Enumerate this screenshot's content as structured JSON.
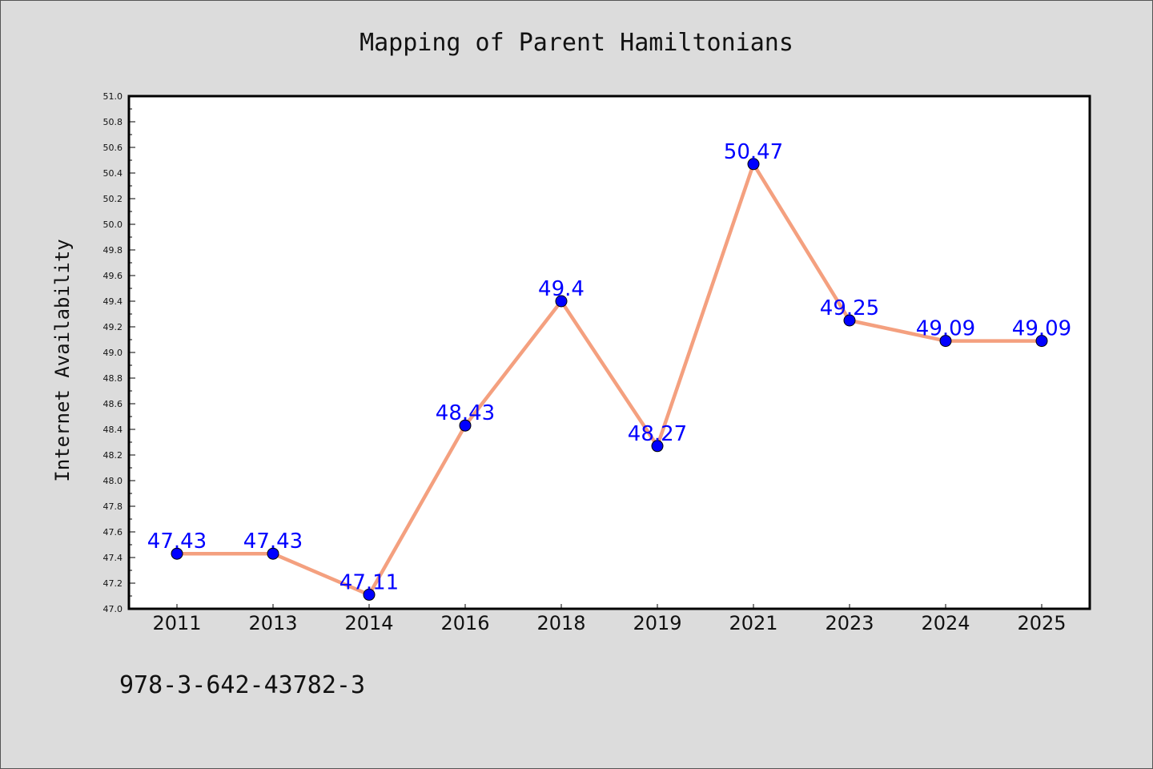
{
  "chart_data": {
    "type": "line",
    "title": "Mapping of Parent Hamiltonians",
    "xlabel": "",
    "ylabel": "Internet Availability",
    "categories": [
      "2011",
      "2013",
      "2014",
      "2016",
      "2018",
      "2019",
      "2021",
      "2023",
      "2024",
      "2025"
    ],
    "values": [
      47.43,
      47.43,
      47.11,
      48.43,
      49.4,
      48.27,
      50.47,
      49.25,
      49.09,
      49.09
    ],
    "data_labels": [
      "47.43",
      "47.43",
      "47.11",
      "48.43",
      "49.4",
      "48.27",
      "50.47",
      "49.25",
      "49.09",
      "49.09"
    ],
    "ylim": [
      47.0,
      51.0
    ],
    "y_ticks": [
      "47.0",
      "47.2",
      "47.4",
      "47.6",
      "47.8",
      "48.0",
      "48.2",
      "48.4",
      "48.6",
      "48.8",
      "49.0",
      "49.2",
      "49.4",
      "49.6",
      "49.8",
      "50.0",
      "50.2",
      "50.4",
      "50.6",
      "50.8",
      "51.0"
    ],
    "grid": false,
    "line_color": "#f4a07f",
    "marker_color": "#0000ff",
    "label_color": "#0000ff",
    "background_color": "#dcdcdc",
    "plot_background": "#ffffff"
  },
  "footer": {
    "text": "978-3-642-43782-3"
  }
}
